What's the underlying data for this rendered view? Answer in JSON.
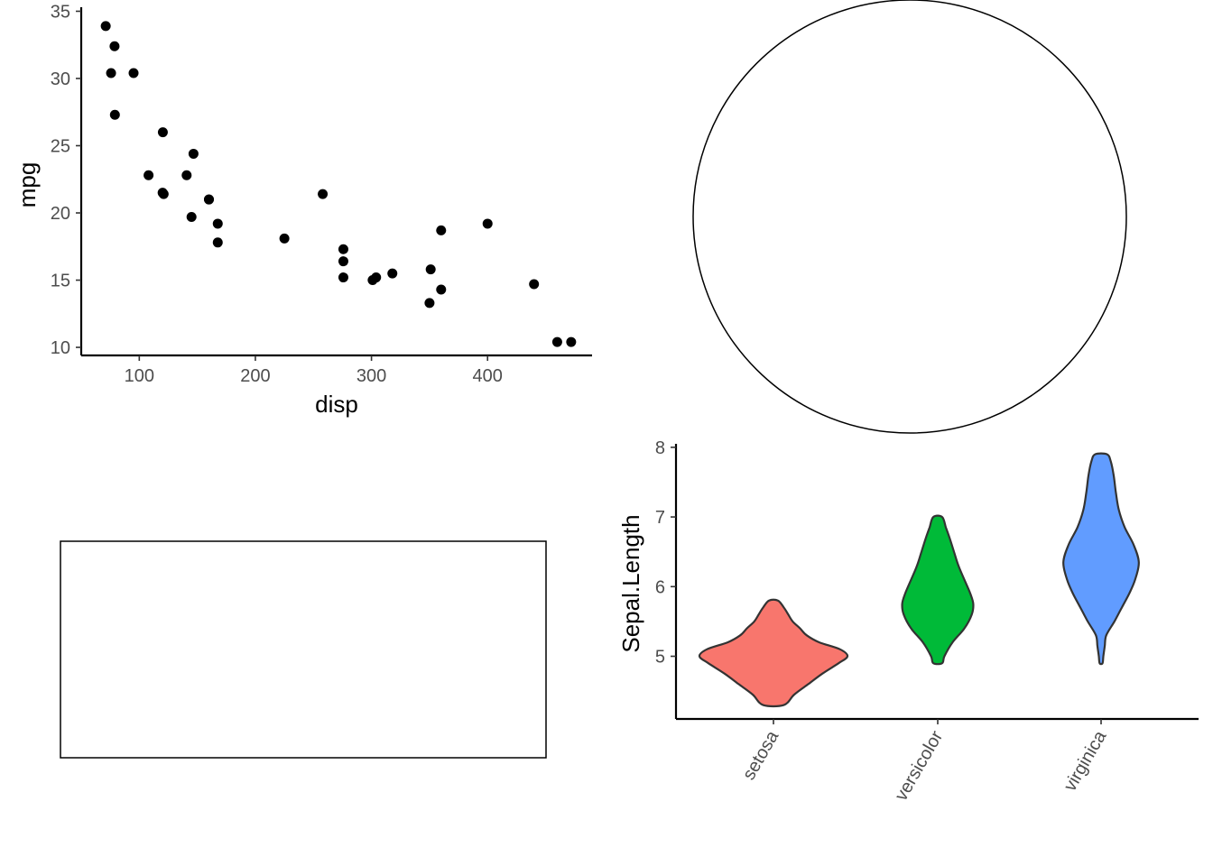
{
  "chart_data": [
    {
      "type": "scatter",
      "xlabel": "disp",
      "ylabel": "mpg",
      "xlim": [
        50,
        490
      ],
      "ylim": [
        9.4,
        35.3
      ],
      "x_ticks": [
        100,
        200,
        300,
        400
      ],
      "y_ticks": [
        10,
        15,
        20,
        25,
        30,
        35
      ],
      "grid": false,
      "point_color": "#000000",
      "points": [
        {
          "x": 160,
          "y": 21.0
        },
        {
          "x": 160,
          "y": 21.0
        },
        {
          "x": 108,
          "y": 22.8
        },
        {
          "x": 258,
          "y": 21.4
        },
        {
          "x": 360,
          "y": 18.7
        },
        {
          "x": 225,
          "y": 18.1
        },
        {
          "x": 360,
          "y": 14.3
        },
        {
          "x": 146.7,
          "y": 24.4
        },
        {
          "x": 140.8,
          "y": 22.8
        },
        {
          "x": 167.6,
          "y": 19.2
        },
        {
          "x": 167.6,
          "y": 17.8
        },
        {
          "x": 275.8,
          "y": 16.4
        },
        {
          "x": 275.8,
          "y": 17.3
        },
        {
          "x": 275.8,
          "y": 15.2
        },
        {
          "x": 472,
          "y": 10.4
        },
        {
          "x": 460,
          "y": 10.4
        },
        {
          "x": 440,
          "y": 14.7
        },
        {
          "x": 78.7,
          "y": 32.4
        },
        {
          "x": 75.7,
          "y": 30.4
        },
        {
          "x": 71.1,
          "y": 33.9
        },
        {
          "x": 120.1,
          "y": 21.5
        },
        {
          "x": 318,
          "y": 15.5
        },
        {
          "x": 304,
          "y": 15.2
        },
        {
          "x": 350,
          "y": 13.3
        },
        {
          "x": 400,
          "y": 19.2
        },
        {
          "x": 79,
          "y": 27.3
        },
        {
          "x": 120.3,
          "y": 26.0
        },
        {
          "x": 95.1,
          "y": 30.4
        },
        {
          "x": 351,
          "y": 15.8
        },
        {
          "x": 145,
          "y": 19.7
        },
        {
          "x": 301,
          "y": 15.0
        },
        {
          "x": 121,
          "y": 21.4
        }
      ]
    },
    {
      "type": "violin",
      "xlabel": "",
      "ylabel": "Sepal.Length",
      "ylim": [
        4.1,
        8.05
      ],
      "y_ticks": [
        5,
        6,
        7,
        8
      ],
      "grid": false,
      "categories": [
        "setosa",
        "versicolor",
        "virginica"
      ],
      "series": [
        {
          "category": "setosa",
          "color": "#F8766D",
          "profile": [
            [
              4.3,
              0.14
            ],
            [
              4.45,
              0.28
            ],
            [
              4.6,
              0.47
            ],
            [
              4.75,
              0.66
            ],
            [
              4.9,
              0.88
            ],
            [
              5.0,
              1.0
            ],
            [
              5.1,
              0.9
            ],
            [
              5.2,
              0.62
            ],
            [
              5.3,
              0.45
            ],
            [
              5.4,
              0.36
            ],
            [
              5.5,
              0.26
            ],
            [
              5.6,
              0.2
            ],
            [
              5.7,
              0.14
            ],
            [
              5.8,
              0.06
            ]
          ]
        },
        {
          "category": "versicolor",
          "color": "#00BA38",
          "profile": [
            [
              4.9,
              0.06
            ],
            [
              5.0,
              0.09
            ],
            [
              5.2,
              0.2
            ],
            [
              5.4,
              0.36
            ],
            [
              5.6,
              0.46
            ],
            [
              5.75,
              0.48
            ],
            [
              5.9,
              0.44
            ],
            [
              6.1,
              0.36
            ],
            [
              6.3,
              0.28
            ],
            [
              6.5,
              0.22
            ],
            [
              6.7,
              0.16
            ],
            [
              6.85,
              0.11
            ],
            [
              7.0,
              0.06
            ]
          ]
        },
        {
          "category": "virginica",
          "color": "#619CFF",
          "profile": [
            [
              4.9,
              0.02
            ],
            [
              5.0,
              0.03
            ],
            [
              5.15,
              0.05
            ],
            [
              5.3,
              0.07
            ],
            [
              5.5,
              0.18
            ],
            [
              5.7,
              0.28
            ],
            [
              5.9,
              0.38
            ],
            [
              6.1,
              0.46
            ],
            [
              6.35,
              0.51
            ],
            [
              6.6,
              0.44
            ],
            [
              6.85,
              0.32
            ],
            [
              7.1,
              0.24
            ],
            [
              7.35,
              0.2
            ],
            [
              7.6,
              0.17
            ],
            [
              7.8,
              0.13
            ],
            [
              7.9,
              0.08
            ]
          ]
        }
      ]
    }
  ]
}
